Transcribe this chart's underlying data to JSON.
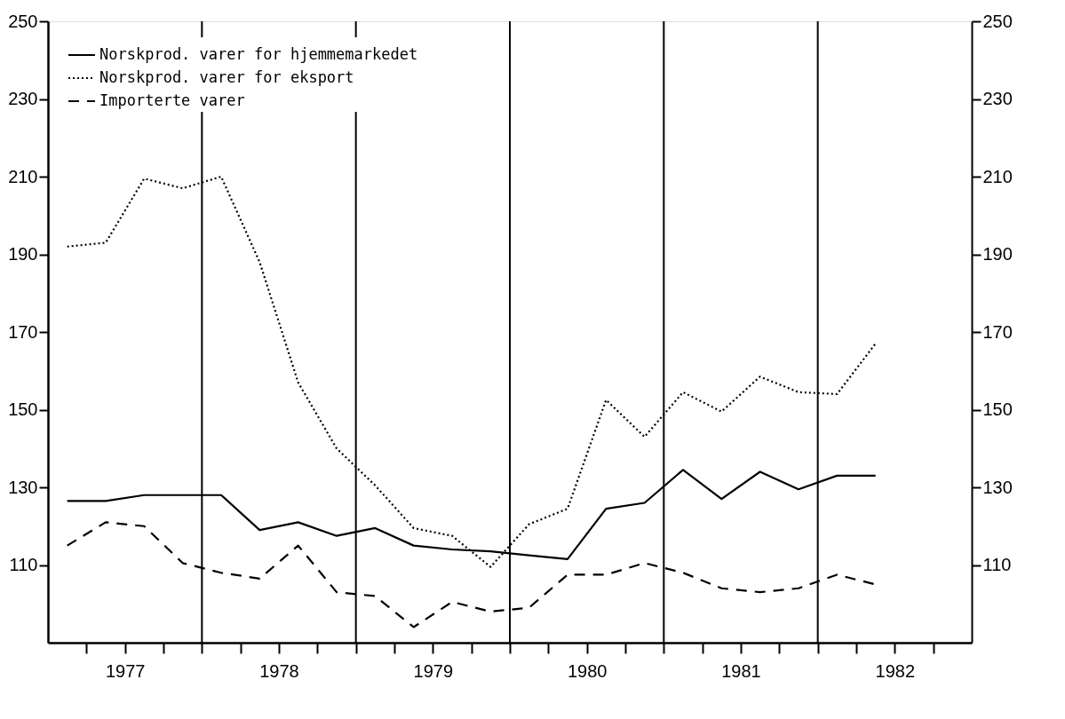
{
  "chart_data": {
    "type": "line",
    "x": [
      1977.125,
      1977.375,
      1977.625,
      1977.875,
      1978.125,
      1978.375,
      1978.625,
      1978.875,
      1979.125,
      1979.375,
      1979.625,
      1979.875,
      1980.125,
      1980.375,
      1980.625,
      1980.875,
      1981.125,
      1981.375,
      1981.625,
      1981.875,
      1982.125,
      1982.375
    ],
    "series": [
      {
        "name": "Norskprod. varer for hjemmemarkedet",
        "color": "#000000",
        "line_style": "solid",
        "values": [
          126.5,
          126.5,
          128,
          128,
          128,
          119,
          121,
          117.5,
          119.5,
          115,
          114,
          113.5,
          112.5,
          111.5,
          124.5,
          126,
          134.5,
          127,
          134,
          129.5,
          133,
          133
        ]
      },
      {
        "name": "Norskprod. varer for eksport",
        "color": "#000000",
        "line_style": "dotted",
        "values": [
          192,
          193,
          209.5,
          207,
          210,
          188,
          157,
          140,
          130.5,
          119.5,
          117.5,
          109.5,
          120.5,
          124.5,
          152.5,
          143,
          154.5,
          149.5,
          158.5,
          154.5,
          154,
          167
        ]
      },
      {
        "name": "Importerte varer",
        "color": "#000000",
        "line_style": "dashed",
        "values": [
          115,
          121,
          120,
          110.5,
          108,
          106.5,
          115,
          103,
          102,
          94,
          100.5,
          98,
          99,
          107.5,
          107.5,
          110.5,
          108,
          104,
          103,
          104,
          107.5,
          105
        ]
      }
    ],
    "xlim": [
      1977,
      1983
    ],
    "xticks": [
      {
        "value": 1977.25,
        "label": null
      },
      {
        "value": 1977.5,
        "label": "1977"
      },
      {
        "value": 1977.75,
        "label": null
      },
      {
        "value": 1978,
        "label": null
      },
      {
        "value": 1978.25,
        "label": null
      },
      {
        "value": 1978.5,
        "label": "1978"
      },
      {
        "value": 1978.75,
        "label": null
      },
      {
        "value": 1979,
        "label": null
      },
      {
        "value": 1979.25,
        "label": null
      },
      {
        "value": 1979.5,
        "label": "1979"
      },
      {
        "value": 1979.75,
        "label": null
      },
      {
        "value": 1980,
        "label": null
      },
      {
        "value": 1980.25,
        "label": null
      },
      {
        "value": 1980.5,
        "label": "1980"
      },
      {
        "value": 1980.75,
        "label": null
      },
      {
        "value": 1981,
        "label": null
      },
      {
        "value": 1981.25,
        "label": null
      },
      {
        "value": 1981.5,
        "label": "1981"
      },
      {
        "value": 1981.75,
        "label": null
      },
      {
        "value": 1982,
        "label": null
      },
      {
        "value": 1982.25,
        "label": null
      },
      {
        "value": 1982.5,
        "label": "1982"
      },
      {
        "value": 1982.75,
        "label": null
      }
    ],
    "ylim": [
      90,
      250
    ],
    "yticks": [
      110,
      130,
      150,
      170,
      190,
      210,
      230,
      250
    ],
    "y2lim": [
      90,
      250
    ],
    "y2ticks": [
      110,
      130,
      150,
      170,
      190,
      210,
      230,
      250
    ],
    "ref_lines": [
      {
        "axis": "x",
        "value": 1978,
        "label": null
      },
      {
        "axis": "x",
        "value": 1979,
        "label": null
      },
      {
        "axis": "x",
        "value": 1980,
        "label": null
      },
      {
        "axis": "x",
        "value": 1981,
        "label": null
      },
      {
        "axis": "x",
        "value": 1982,
        "label": null
      }
    ],
    "grid": false,
    "legend": "top left",
    "marker": "none"
  }
}
